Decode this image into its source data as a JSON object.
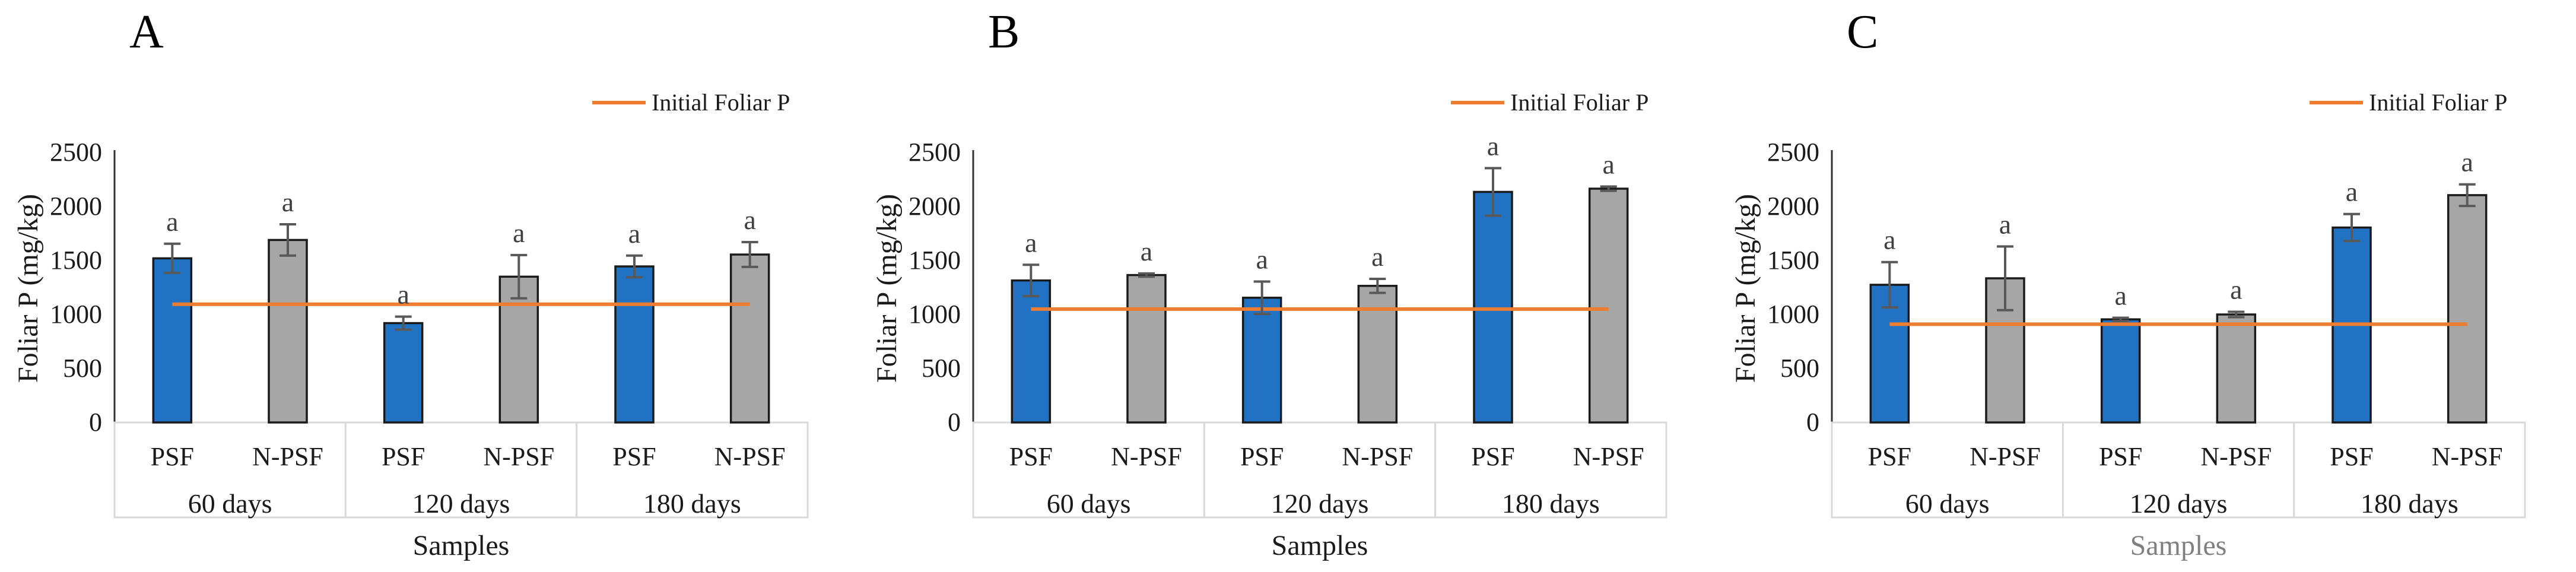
{
  "panels": [
    {
      "label": "A",
      "legend_label": "Initial Foliar P",
      "y_axis_title": "Foliar P (mg/kg)",
      "x_axis_title": "Samples",
      "x_axis_title_color": "#1a1a1a",
      "chart_data": {
        "type": "bar",
        "title": "A",
        "ylabel": "Foliar P (mg/kg)",
        "xlabel": "Samples",
        "ylim": [
          0,
          2500
        ],
        "y_ticks": [
          0,
          500,
          1000,
          1500,
          2000,
          2500
        ],
        "grid": false,
        "legend_position": "top-right",
        "legend": [
          "Initial Foliar P"
        ],
        "groups": [
          "60 days",
          "120 days",
          "180 days"
        ],
        "series": [
          "PSF",
          "N-PSF"
        ],
        "initial_foliar_p": 1095,
        "bars": [
          {
            "group": "60 days",
            "sample": "PSF",
            "value": 1520,
            "error": 135,
            "letter": "a"
          },
          {
            "group": "60 days",
            "sample": "N-PSF",
            "value": 1690,
            "error": 145,
            "letter": "a"
          },
          {
            "group": "120 days",
            "sample": "PSF",
            "value": 920,
            "error": 60,
            "letter": "a"
          },
          {
            "group": "120 days",
            "sample": "N-PSF",
            "value": 1350,
            "error": 200,
            "letter": "a"
          },
          {
            "group": "180 days",
            "sample": "PSF",
            "value": 1445,
            "error": 100,
            "letter": "a"
          },
          {
            "group": "180 days",
            "sample": "N-PSF",
            "value": 1555,
            "error": 115,
            "letter": "a"
          }
        ]
      }
    },
    {
      "label": "B",
      "legend_label": "Initial Foliar P",
      "y_axis_title": "Foliar P (mg/kg)",
      "x_axis_title": "Samples",
      "x_axis_title_color": "#1a1a1a",
      "chart_data": {
        "type": "bar",
        "title": "B",
        "ylabel": "Foliar P (mg/kg)",
        "xlabel": "Samples",
        "ylim": [
          0,
          2500
        ],
        "y_ticks": [
          0,
          500,
          1000,
          1500,
          2000,
          2500
        ],
        "grid": false,
        "legend_position": "top-right",
        "legend": [
          "Initial Foliar P"
        ],
        "groups": [
          "60 days",
          "120 days",
          "180 days"
        ],
        "series": [
          "PSF",
          "N-PSF"
        ],
        "initial_foliar_p": 1050,
        "bars": [
          {
            "group": "60 days",
            "sample": "PSF",
            "value": 1315,
            "error": 145,
            "letter": "a"
          },
          {
            "group": "60 days",
            "sample": "N-PSF",
            "value": 1365,
            "error": 15,
            "letter": "a"
          },
          {
            "group": "120 days",
            "sample": "PSF",
            "value": 1155,
            "error": 150,
            "letter": "a"
          },
          {
            "group": "120 days",
            "sample": "N-PSF",
            "value": 1265,
            "error": 65,
            "letter": "a"
          },
          {
            "group": "180 days",
            "sample": "PSF",
            "value": 2135,
            "error": 220,
            "letter": "a"
          },
          {
            "group": "180 days",
            "sample": "N-PSF",
            "value": 2165,
            "error": 20,
            "letter": "a"
          }
        ]
      }
    },
    {
      "label": "C",
      "legend_label": "Initial Foliar P",
      "y_axis_title": "Foliar P (mg/kg)",
      "x_axis_title": "Samples",
      "x_axis_title_color": "#7f7f7f",
      "chart_data": {
        "type": "bar",
        "title": "C",
        "ylabel": "Foliar P (mg/kg)",
        "xlabel": "Samples",
        "ylim": [
          0,
          2500
        ],
        "y_ticks": [
          0,
          500,
          1000,
          1500,
          2000,
          2500
        ],
        "grid": false,
        "legend_position": "top-right",
        "legend": [
          "Initial Foliar P"
        ],
        "groups": [
          "60 days",
          "120 days",
          "180 days"
        ],
        "series": [
          "PSF",
          "N-PSF"
        ],
        "initial_foliar_p": 910,
        "bars": [
          {
            "group": "60 days",
            "sample": "PSF",
            "value": 1275,
            "error": 210,
            "letter": "a"
          },
          {
            "group": "60 days",
            "sample": "N-PSF",
            "value": 1335,
            "error": 295,
            "letter": "a"
          },
          {
            "group": "120 days",
            "sample": "PSF",
            "value": 955,
            "error": 15,
            "letter": "a"
          },
          {
            "group": "120 days",
            "sample": "N-PSF",
            "value": 1000,
            "error": 25,
            "letter": "a"
          },
          {
            "group": "180 days",
            "sample": "PSF",
            "value": 1805,
            "error": 125,
            "letter": "a"
          },
          {
            "group": "180 days",
            "sample": "N-PSF",
            "value": 2105,
            "error": 100,
            "letter": "a"
          }
        ]
      }
    }
  ],
  "colors": {
    "psf_bar": "#2272c3",
    "npsf_bar": "#a6a6a6",
    "bar_outline": "#1a1a1a",
    "initial_line": "#ed7d31",
    "error_bar": "#595959",
    "sig_letter": "#404040",
    "axis_line": "#333333",
    "table_border": "#d9d9d9",
    "text": "#1a1a1a"
  }
}
